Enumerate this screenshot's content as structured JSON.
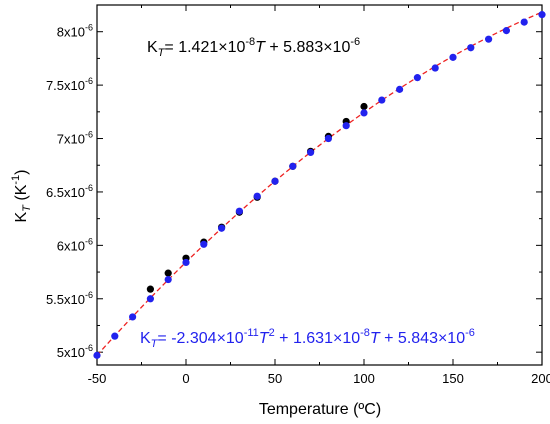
{
  "chart_data": {
    "type": "scatter",
    "xlabel": "Temperature (ºC)",
    "ylabel": {
      "base": "K",
      "sub": "T",
      "mid": " (K",
      "sup": "-1",
      "end": ")"
    },
    "xlim": [
      -50,
      200
    ],
    "ylim": [
      4.88e-06,
      8.25e-06
    ],
    "xticks": [
      -50,
      0,
      50,
      100,
      150,
      200
    ],
    "xtick_labels": [
      "-50",
      "0",
      "50",
      "100",
      "150",
      "200"
    ],
    "yticks": [
      5e-06,
      5.5e-06,
      6e-06,
      6.5e-06,
      7e-06,
      7.5e-06,
      8e-06
    ],
    "ytick_labels": [
      {
        "mant": "5x10",
        "exp": "-6"
      },
      {
        "mant": "5.5x10",
        "exp": "-6"
      },
      {
        "mant": "6x10",
        "exp": "-6"
      },
      {
        "mant": "6.5x10",
        "exp": "-6"
      },
      {
        "mant": "7x10",
        "exp": "-6"
      },
      {
        "mant": "7.5x10",
        "exp": "-6"
      },
      {
        "mant": "8x10",
        "exp": "-6"
      }
    ],
    "grid": false,
    "series": [
      {
        "color": "#000000",
        "marker": "circle",
        "x": [
          -20,
          -10,
          0,
          10,
          20,
          30,
          40,
          50,
          60,
          70,
          80,
          90,
          100
        ],
        "y": [
          5.59e-06,
          5.74e-06,
          5.88e-06,
          6.03e-06,
          6.17e-06,
          6.31e-06,
          6.45e-06,
          6.6e-06,
          6.74e-06,
          6.88e-06,
          7.02e-06,
          7.16e-06,
          7.3e-06
        ]
      },
      {
        "color": "#2222ee",
        "marker": "circle",
        "x": [
          -50,
          -40,
          -30,
          -20,
          -10,
          0,
          10,
          20,
          30,
          40,
          50,
          60,
          70,
          80,
          90,
          100,
          110,
          120,
          130,
          140,
          150,
          160,
          170,
          180,
          190,
          200
        ],
        "y": [
          4.97e-06,
          5.15e-06,
          5.33e-06,
          5.5e-06,
          5.68e-06,
          5.84e-06,
          6.01e-06,
          6.16e-06,
          6.32e-06,
          6.46e-06,
          6.6e-06,
          6.74e-06,
          6.87e-06,
          7e-06,
          7.12e-06,
          7.24e-06,
          7.36e-06,
          7.46e-06,
          7.57e-06,
          7.66e-06,
          7.76e-06,
          7.85e-06,
          7.93e-06,
          8.01e-06,
          8.09e-06,
          8.16e-06
        ]
      }
    ],
    "fits": [
      {
        "color": "#ee2222",
        "style": "dashed",
        "x_range": [
          -50,
          200
        ],
        "coefficients": [
          -2.304e-11,
          1.631e-08,
          5.843e-06
        ]
      }
    ],
    "annotations": [
      {
        "color": "#000000",
        "parts": {
          "a": "K",
          "b": "T",
          "c": "= 1.421×10",
          "d": "-8",
          "e": "T",
          "f": " + 5.883×10",
          "g": "-6"
        }
      },
      {
        "color": "#2222ee",
        "parts": {
          "a": "K",
          "b": "T",
          "c": "= -2.304×10",
          "d": "-11",
          "e": "T",
          "f": "2",
          "g": " + 1.631×10",
          "h": "-8",
          "i": "T",
          "j": " + 5.843×10",
          "k": "-6"
        }
      }
    ]
  }
}
